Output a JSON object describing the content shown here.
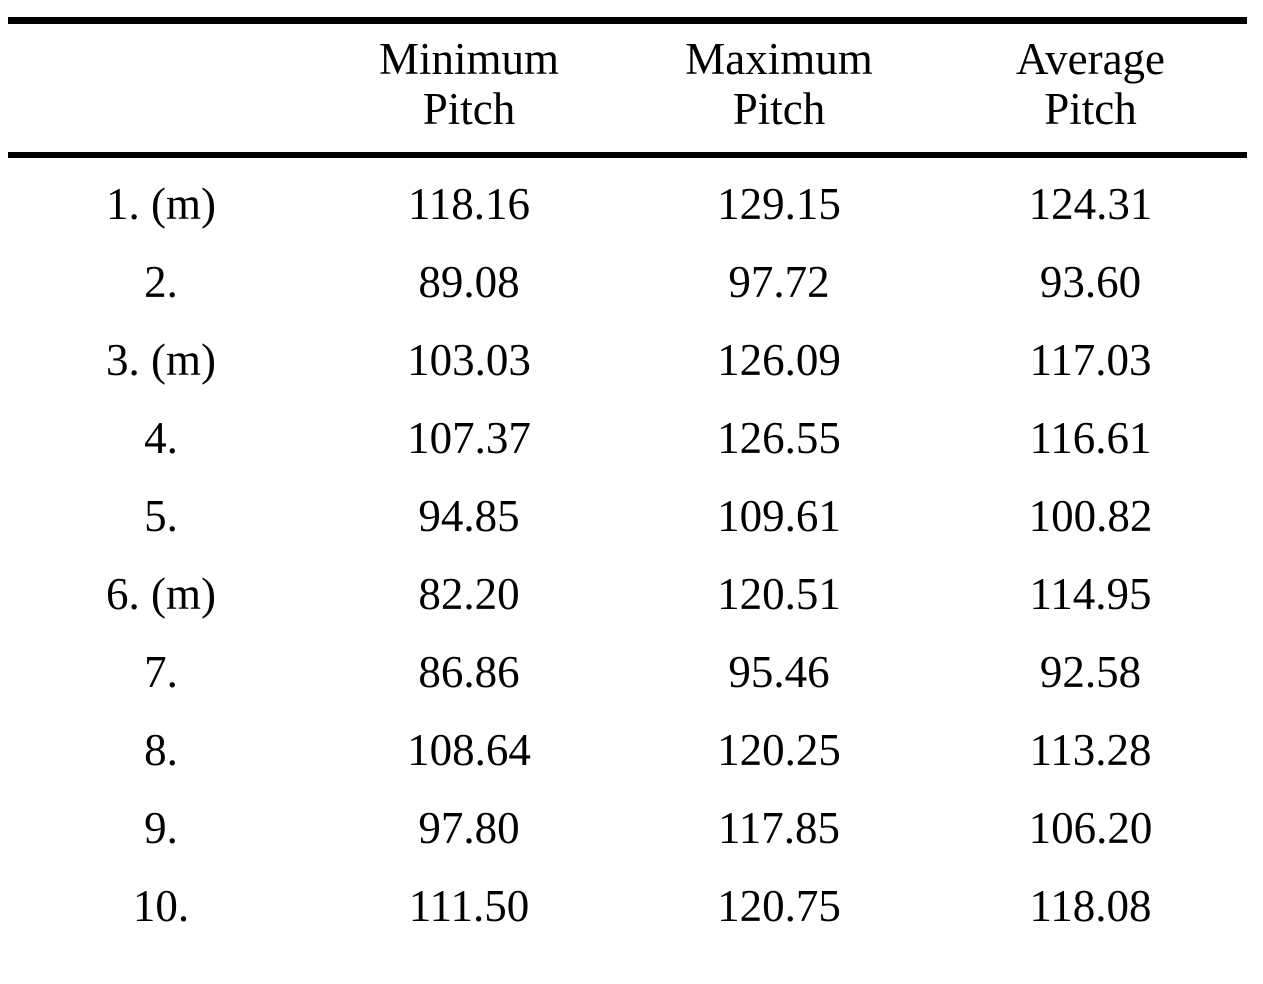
{
  "table": {
    "column_headers": [
      "Minimum Pitch",
      "Maximum Pitch",
      "Average Pitch"
    ],
    "rows": [
      {
        "label": "1. (m)",
        "min": "118.16",
        "max": "129.15",
        "avg": "124.31"
      },
      {
        "label": "2.",
        "min": "89.08",
        "max": "97.72",
        "avg": "93.60"
      },
      {
        "label": "3. (m)",
        "min": "103.03",
        "max": "126.09",
        "avg": "117.03"
      },
      {
        "label": "4.",
        "min": "107.37",
        "max": "126.55",
        "avg": "116.61"
      },
      {
        "label": "5.",
        "min": "94.85",
        "max": "109.61",
        "avg": "100.82"
      },
      {
        "label": "6. (m)",
        "min": "82.20",
        "max": "120.51",
        "avg": "114.95"
      },
      {
        "label": "7.",
        "min": "86.86",
        "max": "95.46",
        "avg": "92.58"
      },
      {
        "label": "8.",
        "min": "108.64",
        "max": "120.25",
        "avg": "113.28"
      },
      {
        "label": "9.",
        "min": "97.80",
        "max": "117.85",
        "avg": "106.20"
      },
      {
        "label": "10.",
        "min": "111.50",
        "max": "120.75",
        "avg": "118.08"
      }
    ]
  }
}
